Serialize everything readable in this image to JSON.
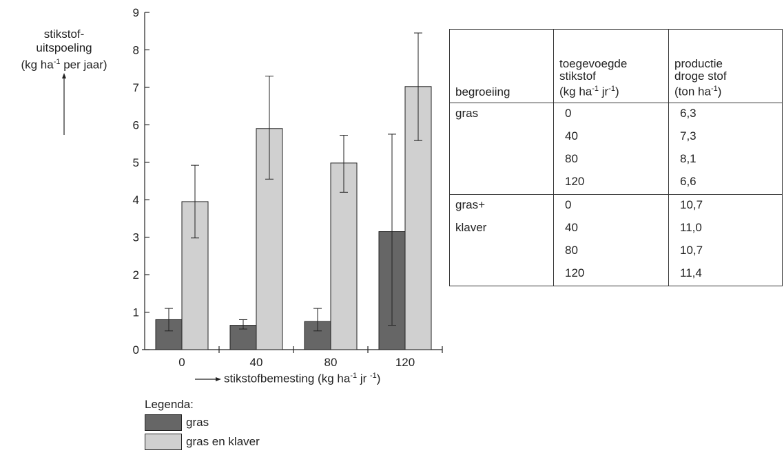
{
  "chart_data": {
    "type": "bar",
    "categories": [
      "0",
      "40",
      "80",
      "120"
    ],
    "series": [
      {
        "name": "gras",
        "color": "#666666",
        "values": [
          0.8,
          0.65,
          0.75,
          3.15
        ],
        "err_low": [
          0.5,
          0.55,
          0.5,
          0.65
        ],
        "err_high": [
          1.1,
          0.8,
          1.1,
          5.75
        ]
      },
      {
        "name": "gras en klaver",
        "color": "#d0d0d0",
        "values": [
          3.95,
          5.9,
          4.98,
          7.02
        ],
        "err_low": [
          2.98,
          4.55,
          4.2,
          5.58
        ],
        "err_high": [
          4.92,
          7.3,
          5.72,
          8.45
        ]
      }
    ],
    "ylim": [
      0,
      9
    ],
    "yticks": [
      "0",
      "1",
      "2",
      "3",
      "4",
      "5",
      "6",
      "7",
      "8",
      "9"
    ],
    "ylabel_lines": [
      "stikstof-",
      "uitspoeling",
      "(kg ha",
      "-1",
      " per jaar)"
    ],
    "xlabel": {
      "pre": "stikstofbemesting (kg ha",
      "sup1": "-1",
      "mid": " jr ",
      "sup2": "-1",
      "post": ")"
    },
    "legend": {
      "title": "Legenda:",
      "items": [
        "gras",
        "gras en klaver"
      ]
    }
  },
  "table": {
    "headers": {
      "c1": "begroeiing",
      "c2_lines": [
        "toegevoegde",
        "stikstof"
      ],
      "c2_unit": {
        "pre": "(kg ha",
        "sup1": "-1",
        "mid": " jr",
        "sup2": "-1",
        "post": ")"
      },
      "c3_lines": [
        "productie",
        "droge stof"
      ],
      "c3_unit": {
        "pre": "(ton ha",
        "sup1": "-1",
        "post": ")"
      }
    },
    "rows": [
      {
        "veg": "gras",
        "n": "0",
        "prod": "6,3"
      },
      {
        "veg": "",
        "n": "40",
        "prod": "7,3"
      },
      {
        "veg": "",
        "n": "80",
        "prod": "8,1"
      },
      {
        "veg": "",
        "n": "120",
        "prod": "6,6"
      },
      {
        "veg": "gras+",
        "n": "0",
        "prod": "10,7"
      },
      {
        "veg": "klaver",
        "n": "40",
        "prod": "11,0"
      },
      {
        "veg": "",
        "n": "80",
        "prod": "10,7"
      },
      {
        "veg": "",
        "n": "120",
        "prod": "11,4"
      }
    ]
  }
}
